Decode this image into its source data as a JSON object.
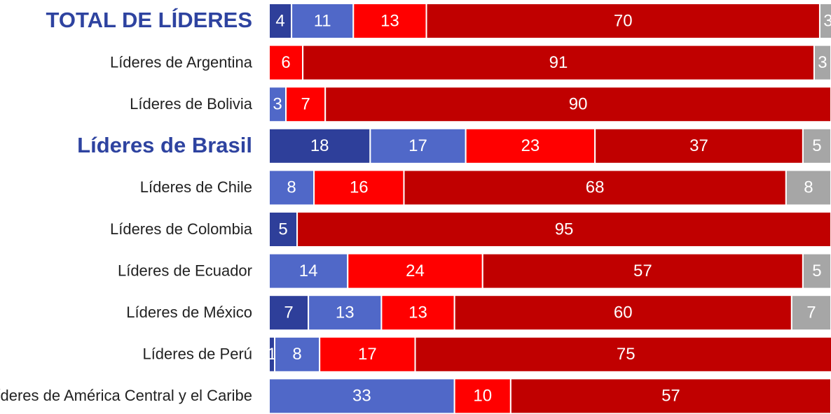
{
  "chart_data": {
    "type": "stacked_barh",
    "categories": [
      "TOTAL DE LÍDERES",
      "Líderes de Argentina",
      "Líderes de Bolivia",
      "Líderes de Brasil",
      "Líderes de Chile",
      "Líderes de Colombia",
      "Líderes de Ecuador",
      "Líderes de México",
      "Líderes de Perú",
      "Líderes de América Central y el Caribe"
    ],
    "highlight": [
      0,
      3
    ],
    "xlim": [
      0,
      100
    ],
    "series": [
      {
        "color": "#2e3f9a",
        "values": [
          4,
          null,
          null,
          18,
          null,
          5,
          null,
          7,
          1,
          null
        ]
      },
      {
        "color": "#5068c8",
        "values": [
          11,
          null,
          3,
          17,
          8,
          null,
          14,
          13,
          8,
          33
        ]
      },
      {
        "color": "#ff0000",
        "values": [
          13,
          6,
          7,
          23,
          16,
          null,
          24,
          13,
          17,
          10
        ]
      },
      {
        "color": "#c00000",
        "values": [
          70,
          91,
          90,
          37,
          68,
          95,
          57,
          60,
          75,
          57
        ]
      },
      {
        "color": "#a6a6a6",
        "values": [
          3,
          3,
          null,
          5,
          8,
          null,
          5,
          7,
          null,
          null
        ]
      }
    ]
  }
}
